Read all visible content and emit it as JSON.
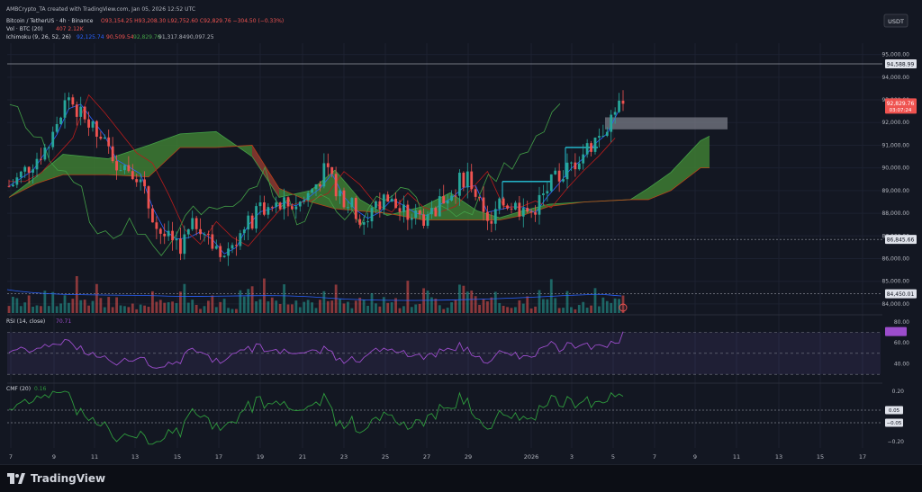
{
  "header": {
    "publisher": "AMBCrypto_TA created with TradingView.com, Jan 05, 2026 12:52 UTC",
    "symbol": "Bitcoin / TetherUS · 4h · Binance",
    "ohlc": "O93,154.25 H93,208.30 L92,752.60 C92,829.76 −304.50 (−0.33%)",
    "extra": "Vol 407.0 +1,300.04 (+1.42%)",
    "vol_label": "Vol · BTC (20)",
    "vol_values": "407  2.12K",
    "ichimoku_label": "Ichimoku (9, 26, 52, 26)",
    "ichimoku_values": [
      "92,125.74",
      "90,509.54",
      "92,829.76",
      "91,317.84",
      "90,097.25"
    ]
  },
  "currency": "USDT",
  "price_axis": [
    "95,000.00",
    "94,000.00",
    "93,000.00",
    "92,000.00",
    "91,000.00",
    "90,000.00",
    "89,000.00",
    "88,000.00",
    "87,000.00",
    "86,000.00",
    "85,000.00",
    "84,000.00"
  ],
  "price_tags": {
    "high": "94,588.99",
    "current": "92,829.76",
    "countdown": "03:07:24",
    "support1": "86,845.66",
    "support2": "84,450.01"
  },
  "rsi": {
    "label": "RSI (14, close)",
    "value": "70.71",
    "axis": [
      "80.00",
      "60.00",
      "40.00"
    ]
  },
  "cmf": {
    "label": "CMF (20)",
    "value": "0.16",
    "axis": [
      "0.20",
      "−0.20"
    ],
    "tags": [
      "0.05",
      "−0.05"
    ]
  },
  "time_axis": [
    "7",
    "9",
    "11",
    "13",
    "15",
    "17",
    "19",
    "21",
    "23",
    "25",
    "27",
    "29",
    "2026",
    "3",
    "5",
    "7",
    "9",
    "11",
    "13",
    "15",
    "17"
  ],
  "brand": "TradingView",
  "colors": {
    "up": "#26a69a",
    "down": "#ef5350",
    "cloud_up": "#3e7d32",
    "cloud_down": "#8c3a30",
    "rsi": "#9c4dcc",
    "cmf": "#2e9b3d"
  },
  "chart_data": {
    "type": "candlestick",
    "timeframe": "4h",
    "approx_close_path": [
      {
        "date": "Dec 6",
        "close": 89200
      },
      {
        "date": "Dec 8",
        "close": 91300
      },
      {
        "date": "Dec 9",
        "close": 93200
      },
      {
        "date": "Dec 10",
        "close": 92300
      },
      {
        "date": "Dec 12",
        "close": 90300
      },
      {
        "date": "Dec 14",
        "close": 89900
      },
      {
        "date": "Dec 15",
        "close": 87300
      },
      {
        "date": "Dec 16",
        "close": 86400
      },
      {
        "date": "Dec 17",
        "close": 87700
      },
      {
        "date": "Dec 18",
        "close": 86000
      },
      {
        "date": "Dec 19",
        "close": 88100
      },
      {
        "date": "Dec 21",
        "close": 88500
      },
      {
        "date": "Dec 22",
        "close": 89800
      },
      {
        "date": "Dec 23",
        "close": 88700
      },
      {
        "date": "Dec 24",
        "close": 87600
      },
      {
        "date": "Dec 26",
        "close": 88700
      },
      {
        "date": "Dec 27",
        "close": 87900
      },
      {
        "date": "Dec 28",
        "close": 87800
      },
      {
        "date": "Dec 29",
        "close": 89800
      },
      {
        "date": "Dec 30",
        "close": 87400
      },
      {
        "date": "Dec 31",
        "close": 88500
      },
      {
        "date": "Jan 1",
        "close": 88000
      },
      {
        "date": "Jan 2",
        "close": 89200
      },
      {
        "date": "Jan 3",
        "close": 90100
      },
      {
        "date": "Jan 4",
        "close": 91200
      },
      {
        "date": "Jan 5",
        "close": 92829.76
      }
    ],
    "ylim": [
      83600,
      95500
    ],
    "levels": [
      94588.99,
      86845.66,
      84450.01
    ],
    "rsi_ylim": [
      25,
      85
    ],
    "cmf_ylim": [
      -0.25,
      0.25
    ]
  }
}
